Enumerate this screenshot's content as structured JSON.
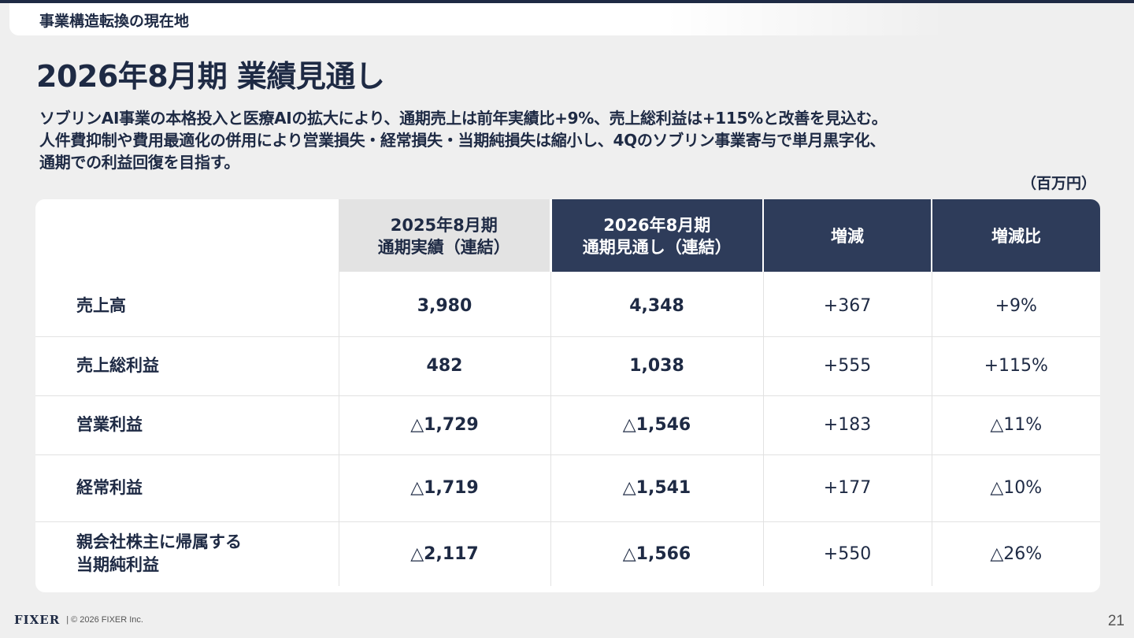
{
  "section_label": "事業構造転換の現在地",
  "title": "2026年8月期 業績見通し",
  "summary_lines": [
    "ソブリンAI事業の本格投入と医療AIの拡大により、通期売上は前年実績比+9%、売上総利益は+115%と改善を見込む。",
    "人件費抑制や費用最適化の併用により営業損失・経常損失・当期純損失は縮小し、4Qのソブリン事業寄与で単月黒字化、",
    "通期での利益回復を目指す。"
  ],
  "unit": "（百万円）",
  "table": {
    "headers": {
      "prev_line1": "2025年8月期",
      "prev_line2": "通期実績（連結）",
      "curr_line1": "2026年8月期",
      "curr_line2": "通期見通し（連結）",
      "diff": "増減",
      "ratio": "増減比"
    },
    "rows": [
      {
        "label_line1": "売上高",
        "label_line2": "",
        "prev": "3,980",
        "curr": "4,348",
        "diff": "+367",
        "ratio": "+9%"
      },
      {
        "label_line1": "売上総利益",
        "label_line2": "",
        "prev": "482",
        "curr": "1,038",
        "diff": "+555",
        "ratio": "+115%"
      },
      {
        "label_line1": "営業利益",
        "label_line2": "",
        "prev": "△1,729",
        "curr": "△1,546",
        "diff": "+183",
        "ratio": "△11%"
      },
      {
        "label_line1": "経常利益",
        "label_line2": "",
        "prev": "△1,719",
        "curr": "△1,541",
        "diff": "+177",
        "ratio": "△10%"
      },
      {
        "label_line1": "親会社株主に帰属する",
        "label_line2": "当期純利益",
        "prev": "△2,117",
        "curr": "△1,566",
        "diff": "+550",
        "ratio": "△26%"
      }
    ]
  },
  "footer": {
    "logo": "FIXER",
    "copyright": "| © 2026 FIXER Inc."
  },
  "page_number": "21",
  "colors": {
    "navy": "#1e2a44",
    "header_dark": "#2e3c5a",
    "header_light": "#e3e3e3",
    "background": "#efefef"
  }
}
